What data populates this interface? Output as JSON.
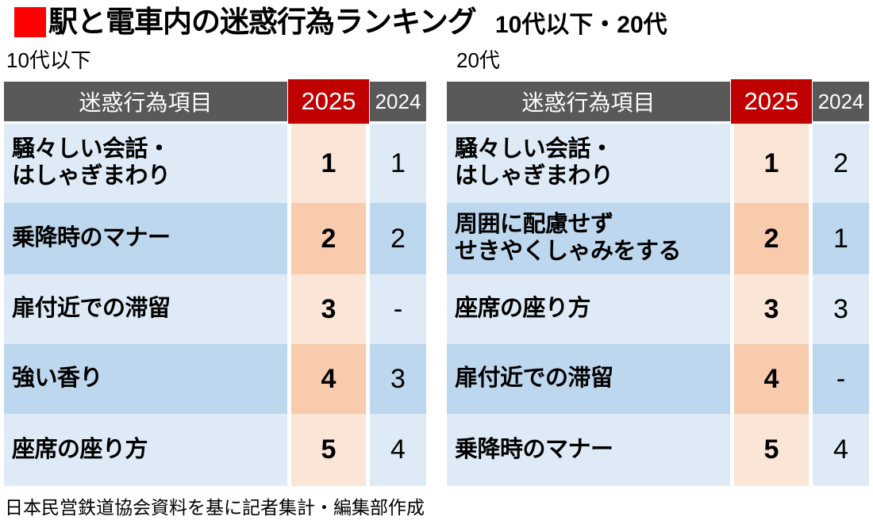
{
  "title": {
    "text": "駅と電車内の迷惑行為ランキング",
    "subtitle": "10代以下・20代"
  },
  "columns": {
    "item": "迷惑行為項目",
    "y2025": "2025",
    "y2024": "2024"
  },
  "tables": [
    {
      "label": "10代以下",
      "rows": [
        {
          "item": "騒々しい会話・\nはしゃぎまわり",
          "r2025": "1",
          "r2024": "1"
        },
        {
          "item": "乗降時のマナー",
          "r2025": "2",
          "r2024": "2"
        },
        {
          "item": "扉付近での滞留",
          "r2025": "3",
          "r2024": "-"
        },
        {
          "item": "強い香り",
          "r2025": "4",
          "r2024": "3"
        },
        {
          "item": "座席の座り方",
          "r2025": "5",
          "r2024": "4"
        }
      ]
    },
    {
      "label": "20代",
      "rows": [
        {
          "item": "騒々しい会話・\nはしゃぎまわり",
          "r2025": "1",
          "r2024": "2"
        },
        {
          "item": "周囲に配慮せず\nせきやくしゃみをする",
          "r2025": "2",
          "r2024": "1"
        },
        {
          "item": "座席の座り方",
          "r2025": "3",
          "r2024": "3"
        },
        {
          "item": "扉付近での滞留",
          "r2025": "4",
          "r2024": "-"
        },
        {
          "item": "乗降時のマナー",
          "r2025": "5",
          "r2024": "4"
        }
      ]
    }
  ],
  "source": "日本民営鉄道協会資料を基に記者集計・編集部作成",
  "colors": {
    "title_square": "#FF0000",
    "header_gray": "#595959",
    "highlight_red": "#C00000",
    "row_blue_light": "#DEEBF7",
    "row_blue_dark": "#BDD7EE",
    "row_orange_light": "#FBE5D6",
    "row_orange_dark": "#F8CBAD"
  },
  "chart_data": [
    {
      "type": "table",
      "title": "駅と電車内の迷惑行為ランキング 10代以下",
      "columns": [
        "迷惑行為項目",
        "2025",
        "2024"
      ],
      "rows": [
        [
          "騒々しい会話・はしゃぎまわり",
          "1",
          "1"
        ],
        [
          "乗降時のマナー",
          "2",
          "2"
        ],
        [
          "扉付近での滞留",
          "3",
          "-"
        ],
        [
          "強い香り",
          "4",
          "3"
        ],
        [
          "座席の座り方",
          "5",
          "4"
        ]
      ]
    },
    {
      "type": "table",
      "title": "駅と電車内の迷惑行為ランキング 20代",
      "columns": [
        "迷惑行為項目",
        "2025",
        "2024"
      ],
      "rows": [
        [
          "騒々しい会話・はしゃぎまわり",
          "1",
          "2"
        ],
        [
          "周囲に配慮せずせきやくしゃみをする",
          "2",
          "1"
        ],
        [
          "座席の座り方",
          "3",
          "3"
        ],
        [
          "扉付近での滞留",
          "4",
          "-"
        ],
        [
          "乗降時のマナー",
          "5",
          "4"
        ]
      ]
    }
  ]
}
